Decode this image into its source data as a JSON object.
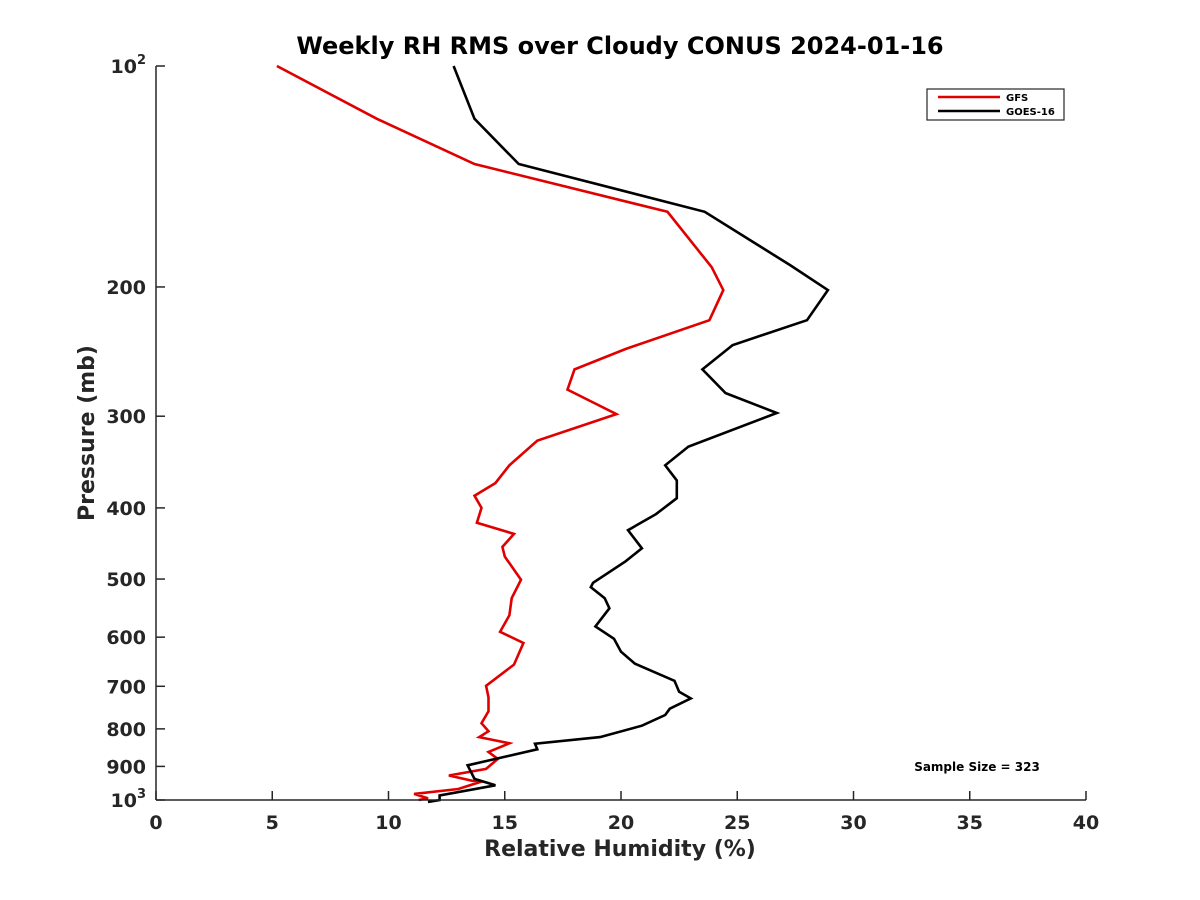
{
  "chart_data": {
    "type": "line",
    "title": "Weekly RH RMS over Cloudy CONUS 2024-01-16",
    "xlabel": "Relative Humidity (%)",
    "ylabel": "Pressure (mb)",
    "xlim": [
      0,
      40
    ],
    "ylim": [
      100,
      1000
    ],
    "y_scale": "log",
    "y_reversed": true,
    "x_ticks": [
      0,
      5,
      10,
      15,
      20,
      25,
      30,
      35,
      40
    ],
    "y_ticks": [
      {
        "value": 100,
        "label": "10",
        "sup": "2"
      },
      {
        "value": 200,
        "label": "200"
      },
      {
        "value": 300,
        "label": "300"
      },
      {
        "value": 400,
        "label": "400"
      },
      {
        "value": 500,
        "label": "500"
      },
      {
        "value": 600,
        "label": "600"
      },
      {
        "value": 700,
        "label": "700"
      },
      {
        "value": 800,
        "label": "800"
      },
      {
        "value": 900,
        "label": "900"
      },
      {
        "value": 1000,
        "label": "10",
        "sup": "3"
      }
    ],
    "grid": false,
    "legend_position": "top-right",
    "series": [
      {
        "name": "GFS",
        "color": "#e00000",
        "x": [
          5.2,
          9.5,
          13.7,
          22.0,
          23.9,
          24.4,
          23.8,
          20.2,
          18.0,
          17.7,
          19.8,
          16.4,
          15.2,
          14.6,
          13.7,
          14.0,
          13.8,
          15.4,
          14.9,
          15.0,
          15.7,
          15.3,
          15.2,
          14.8,
          15.8,
          15.4,
          14.2,
          14.3,
          14.3,
          14.0,
          14.3,
          13.9,
          15.2,
          14.3,
          14.7,
          14.2,
          12.6,
          13.9,
          13.0,
          11.1,
          11.7,
          11.3
        ],
        "y": [
          100,
          118,
          136,
          158,
          188,
          202,
          222,
          243,
          259,
          276,
          298,
          324,
          350,
          370,
          385,
          400,
          419,
          434,
          452,
          466,
          501,
          531,
          560,
          590,
          611,
          654,
          699,
          725,
          757,
          786,
          806,
          821,
          837,
          860,
          879,
          907,
          926,
          946,
          966,
          981,
          995,
          1000
        ]
      },
      {
        "name": "GOES-16",
        "color": "#000000",
        "x": [
          12.8,
          13.7,
          15.6,
          23.6,
          27.3,
          28.9,
          28.0,
          24.8,
          23.5,
          24.5,
          26.7,
          22.9,
          21.9,
          22.4,
          22.4,
          21.5,
          20.3,
          20.9,
          20.2,
          18.8,
          18.7,
          19.3,
          19.5,
          18.9,
          19.7,
          20.0,
          20.6,
          22.3,
          22.5,
          23.0,
          22.1,
          21.9,
          20.9,
          19.1,
          16.3,
          16.4,
          13.4,
          13.7,
          14.6,
          12.2,
          12.2,
          11.7
        ],
        "y": [
          100,
          118,
          136,
          158,
          187,
          202,
          222,
          240,
          259,
          279,
          297,
          330,
          350,
          367,
          388,
          408,
          429,
          454,
          473,
          506,
          513,
          531,
          548,
          580,
          603,
          628,
          652,
          688,
          712,
          727,
          751,
          766,
          792,
          821,
          838,
          853,
          897,
          936,
          955,
          986,
          1000,
          1010
        ]
      }
    ],
    "annotations": [
      "Sample Size = 323"
    ]
  }
}
